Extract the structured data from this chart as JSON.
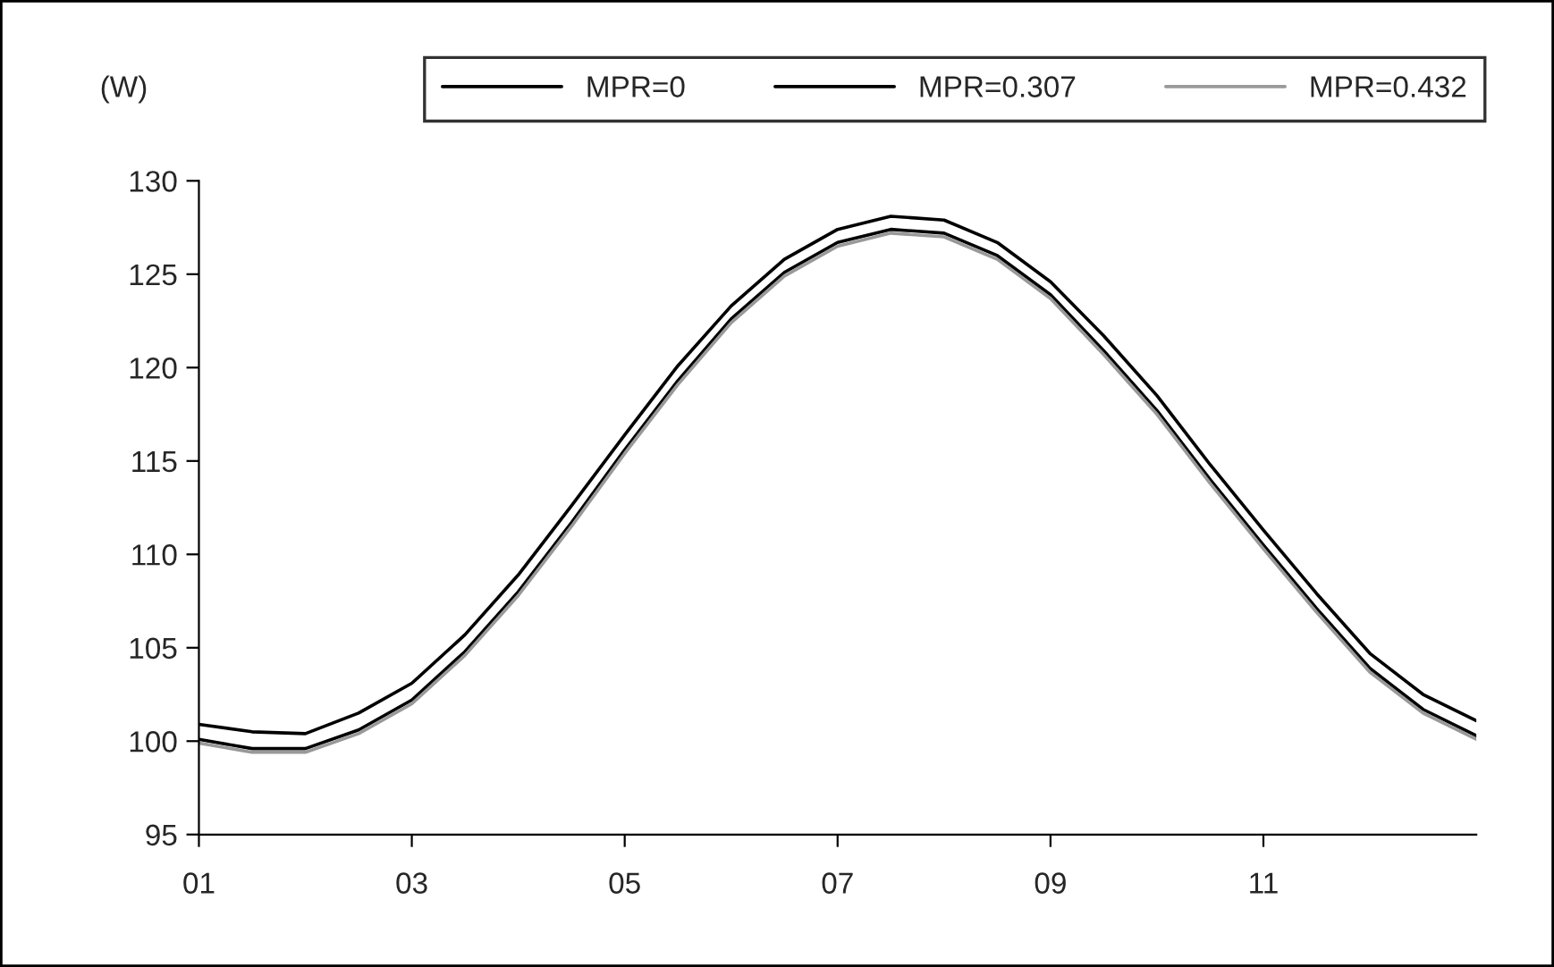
{
  "chart_data": {
    "type": "line",
    "ylabel": "(W)",
    "x": [
      1,
      1.5,
      2,
      2.5,
      3,
      3.5,
      4,
      4.5,
      5,
      5.5,
      6,
      6.5,
      7,
      7.5,
      8,
      8.5,
      9,
      9.5,
      10,
      10.5,
      11,
      11.5,
      12,
      12.5,
      13
    ],
    "series": [
      {
        "name": "MPR=0",
        "color": "#000000",
        "values": [
          100.9,
          100.5,
          100.4,
          101.5,
          103.1,
          105.7,
          108.9,
          112.6,
          116.4,
          120.1,
          123.3,
          125.8,
          127.4,
          128.1,
          127.9,
          126.7,
          124.6,
          121.7,
          118.5,
          114.8,
          111.3,
          107.9,
          104.7,
          102.5,
          101.1
        ]
      },
      {
        "name": "MPR=0.307",
        "color": "#000000",
        "values": [
          100.1,
          99.6,
          99.6,
          100.6,
          102.2,
          104.8,
          108.0,
          111.7,
          115.6,
          119.3,
          122.6,
          125.1,
          126.7,
          127.4,
          127.2,
          126.0,
          123.9,
          120.9,
          117.7,
          114.0,
          110.5,
          107.1,
          103.9,
          101.7,
          100.3
        ]
      },
      {
        "name": "MPR=0.432",
        "color": "#999999",
        "values": [
          99.9,
          99.4,
          99.4,
          100.4,
          102.0,
          104.6,
          107.8,
          111.5,
          115.4,
          119.1,
          122.4,
          124.9,
          126.5,
          127.2,
          127.0,
          125.8,
          123.7,
          120.7,
          117.5,
          113.8,
          110.3,
          106.9,
          103.7,
          101.5,
          100.1
        ]
      }
    ],
    "xlim": [
      1,
      13
    ],
    "xticks": [
      {
        "value": 1,
        "label": "01"
      },
      {
        "value": 3,
        "label": "03"
      },
      {
        "value": 5,
        "label": "05"
      },
      {
        "value": 7,
        "label": "07"
      },
      {
        "value": 9,
        "label": "09"
      },
      {
        "value": 11,
        "label": "11"
      }
    ],
    "ylim": [
      95,
      130
    ],
    "yticks": [
      95,
      100,
      105,
      110,
      115,
      120,
      125,
      130
    ],
    "grid": false,
    "legend": "top",
    "line_style": "solid",
    "marker": "none"
  }
}
